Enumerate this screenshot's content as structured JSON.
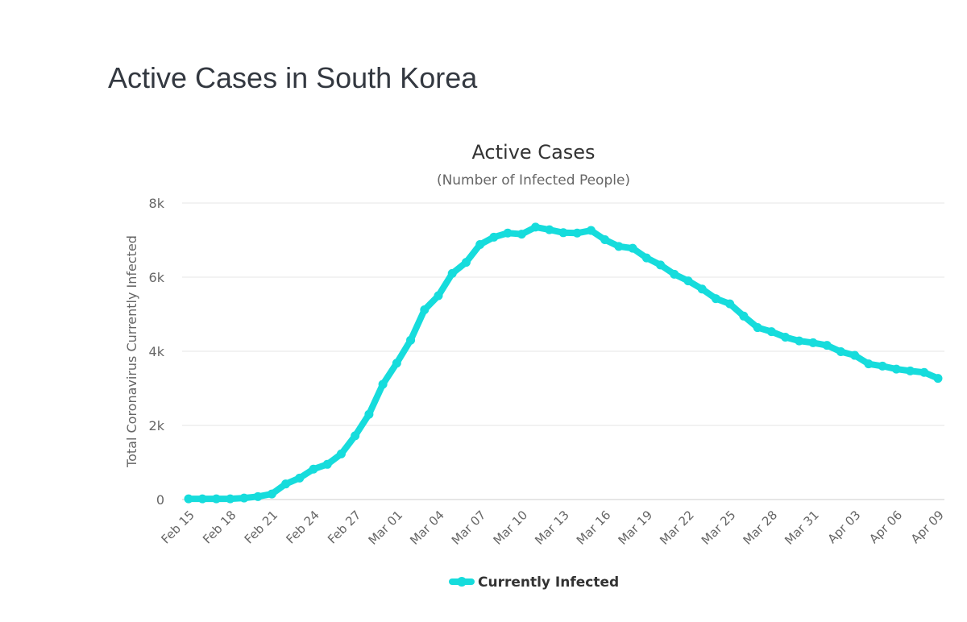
{
  "page": {
    "title": "Active Cases in South Korea"
  },
  "chart_data": {
    "type": "line",
    "title": "Active Cases",
    "subtitle": "(Number of Infected People)",
    "xlabel": "",
    "ylabel": "Total Coronavirus Currently Infected",
    "ylim": [
      0,
      8000
    ],
    "y_ticks": [
      0,
      2000,
      4000,
      6000,
      8000
    ],
    "y_tick_labels": [
      "0",
      "2k",
      "4k",
      "6k",
      "8k"
    ],
    "x_tick_labels": [
      "Feb 15",
      "Feb 18",
      "Feb 21",
      "Feb 24",
      "Feb 27",
      "Mar 01",
      "Mar 04",
      "Mar 07",
      "Mar 10",
      "Mar 13",
      "Mar 16",
      "Mar 19",
      "Mar 22",
      "Mar 25",
      "Mar 28",
      "Mar 31",
      "Apr 03",
      "Apr 06",
      "Apr 09"
    ],
    "x": [
      "Feb 15",
      "Feb 16",
      "Feb 17",
      "Feb 18",
      "Feb 19",
      "Feb 20",
      "Feb 21",
      "Feb 22",
      "Feb 23",
      "Feb 24",
      "Feb 25",
      "Feb 26",
      "Feb 27",
      "Feb 28",
      "Feb 29",
      "Mar 01",
      "Mar 02",
      "Mar 03",
      "Mar 04",
      "Mar 05",
      "Mar 06",
      "Mar 07",
      "Mar 08",
      "Mar 09",
      "Mar 10",
      "Mar 11",
      "Mar 12",
      "Mar 13",
      "Mar 14",
      "Mar 15",
      "Mar 16",
      "Mar 17",
      "Mar 18",
      "Mar 19",
      "Mar 20",
      "Mar 21",
      "Mar 22",
      "Mar 23",
      "Mar 24",
      "Mar 25",
      "Mar 26",
      "Mar 27",
      "Mar 28",
      "Mar 29",
      "Mar 30",
      "Mar 31",
      "Apr 01",
      "Apr 02",
      "Apr 03",
      "Apr 04",
      "Apr 05",
      "Apr 06",
      "Apr 07",
      "Apr 08",
      "Apr 09"
    ],
    "grid": true,
    "legend_position": "bottom",
    "series": [
      {
        "name": "Currently Infected",
        "color": "#16dcdc",
        "values": [
          20,
          20,
          20,
          20,
          40,
          80,
          150,
          420,
          580,
          820,
          950,
          1230,
          1720,
          2300,
          3110,
          3680,
          4300,
          5120,
          5500,
          6100,
          6400,
          6880,
          7080,
          7190,
          7160,
          7350,
          7280,
          7200,
          7190,
          7260,
          7010,
          6830,
          6780,
          6520,
          6330,
          6080,
          5900,
          5680,
          5420,
          5280,
          4950,
          4640,
          4530,
          4380,
          4280,
          4230,
          4160,
          3990,
          3890,
          3660,
          3600,
          3520,
          3470,
          3430,
          3270
        ]
      }
    ]
  }
}
